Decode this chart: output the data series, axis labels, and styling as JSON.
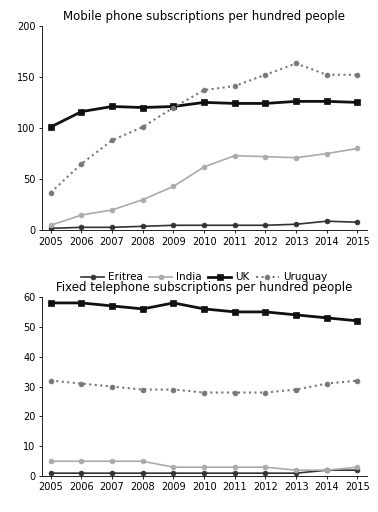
{
  "years": [
    2005,
    2006,
    2007,
    2008,
    2009,
    2010,
    2011,
    2012,
    2013,
    2014,
    2015
  ],
  "mobile": {
    "Eritrea": [
      2,
      3,
      3,
      4,
      5,
      5,
      5,
      5,
      6,
      9,
      8
    ],
    "India": [
      5,
      15,
      20,
      30,
      43,
      62,
      73,
      72,
      71,
      75,
      80
    ],
    "UK": [
      101,
      116,
      121,
      120,
      121,
      125,
      124,
      124,
      126,
      126,
      125
    ],
    "Uruguay": [
      37,
      65,
      88,
      101,
      120,
      137,
      141,
      152,
      163,
      152,
      152
    ]
  },
  "fixed": {
    "Eritrea": [
      1,
      1,
      1,
      1,
      1,
      1,
      1,
      1,
      1,
      2,
      2
    ],
    "India": [
      5,
      5,
      5,
      5,
      3,
      3,
      3,
      3,
      2,
      2,
      3
    ],
    "UK": [
      58,
      58,
      57,
      56,
      58,
      56,
      55,
      55,
      54,
      53,
      52
    ],
    "Uruguay": [
      32,
      31,
      30,
      29,
      29,
      28,
      28,
      28,
      29,
      31,
      32
    ]
  },
  "mobile_ylim": [
    0,
    200
  ],
  "mobile_yticks": [
    0,
    50,
    100,
    150,
    200
  ],
  "fixed_ylim": [
    0,
    60
  ],
  "fixed_yticks": [
    0,
    10,
    20,
    30,
    40,
    50,
    60
  ],
  "title_mobile": "Mobile phone subscriptions per hundred people",
  "title_fixed": "Fixed telephone subscriptions per hundred people",
  "countries": [
    "Eritrea",
    "India",
    "UK",
    "Uruguay"
  ],
  "line_styles": {
    "Eritrea": {
      "color": "#333333",
      "linestyle": "-",
      "marker": "o",
      "linewidth": 1.2,
      "markersize": 3.5,
      "markerfacecolor": "#333333"
    },
    "India": {
      "color": "#aaaaaa",
      "linestyle": "-",
      "marker": "o",
      "linewidth": 1.2,
      "markersize": 3.5,
      "markerfacecolor": "#aaaaaa"
    },
    "UK": {
      "color": "#111111",
      "linestyle": "-",
      "marker": "s",
      "linewidth": 2.0,
      "markersize": 4.5,
      "markerfacecolor": "#111111"
    },
    "Uruguay": {
      "color": "#777777",
      "linestyle": ":",
      "marker": "o",
      "linewidth": 1.5,
      "markersize": 3.5,
      "markerfacecolor": "#777777"
    }
  },
  "background_color": "#ffffff",
  "font_size_title": 8.5,
  "font_size_tick": 7,
  "font_size_legend": 7.5
}
